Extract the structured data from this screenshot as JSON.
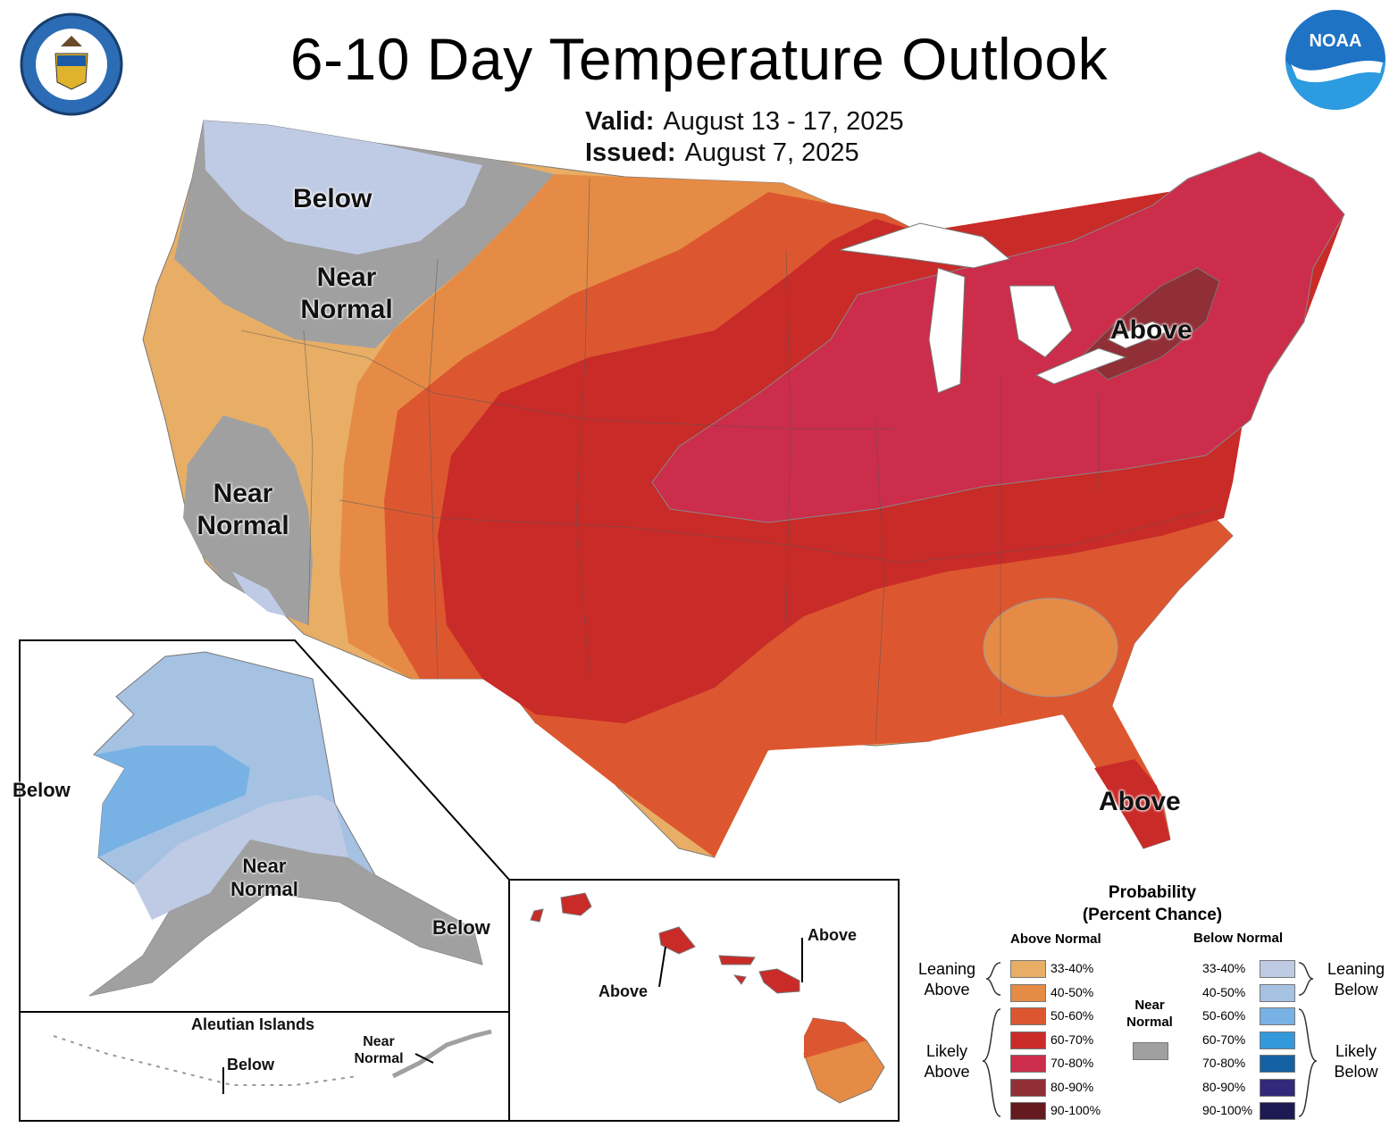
{
  "title": "6-10 Day Temperature Outlook",
  "valid_label": "Valid:",
  "valid_value": "August 13 - 17, 2025",
  "issued_label": "Issued:",
  "issued_value": "August 7, 2025",
  "logos": {
    "left": {
      "icon": "department-of-commerce-seal-icon",
      "text": "DEPARTMENT OF COMMERCE · UNITED STATES OF AMERICA"
    },
    "right": {
      "icon": "noaa-logo-icon",
      "text": "NOAA"
    }
  },
  "map_labels": {
    "nw_below": "Below",
    "nw_near_1": "Near",
    "nw_near_2": "Normal",
    "ca_near_1": "Near",
    "ca_near_2": "Normal",
    "ne_above": "Above",
    "fl_above": "Above",
    "ak_below_west": "Below",
    "ak_near_1": "Near",
    "ak_near_2": "Normal",
    "ak_below_se": "Below",
    "aleutian_title": "Aleutian Islands",
    "aleutian_below": "Below",
    "aleutian_near_1": "Near",
    "aleutian_near_2": "Normal",
    "hi_above_1": "Above",
    "hi_above_2": "Above"
  },
  "legend": {
    "title_1": "Probability",
    "title_2": "(Percent Chance)",
    "above_header": "Above Normal",
    "below_header": "Below Normal",
    "near_1": "Near",
    "near_2": "Normal",
    "leaning_above_1": "Leaning",
    "leaning_above_2": "Above",
    "likely_above_1": "Likely",
    "likely_above_2": "Above",
    "leaning_below_1": "Leaning",
    "leaning_below_2": "Below",
    "likely_below_1": "Likely",
    "likely_below_2": "Below",
    "above": [
      {
        "range": "33-40%",
        "color": "#E8AE66"
      },
      {
        "range": "40-50%",
        "color": "#E68B45"
      },
      {
        "range": "50-60%",
        "color": "#DC5730"
      },
      {
        "range": "60-70%",
        "color": "#C92B28"
      },
      {
        "range": "70-80%",
        "color": "#CC2D4A"
      },
      {
        "range": "80-90%",
        "color": "#912F36"
      },
      {
        "range": "90-100%",
        "color": "#641A1F"
      }
    ],
    "below": [
      {
        "range": "33-40%",
        "color": "#BFCBE5"
      },
      {
        "range": "40-50%",
        "color": "#A6C2E3"
      },
      {
        "range": "50-60%",
        "color": "#78B2E4"
      },
      {
        "range": "60-70%",
        "color": "#3399DB"
      },
      {
        "range": "70-80%",
        "color": "#1561A4"
      },
      {
        "range": "80-90%",
        "color": "#32297A"
      },
      {
        "range": "90-100%",
        "color": "#1D1A53"
      }
    ],
    "near_color": "#A0A0A0"
  }
}
